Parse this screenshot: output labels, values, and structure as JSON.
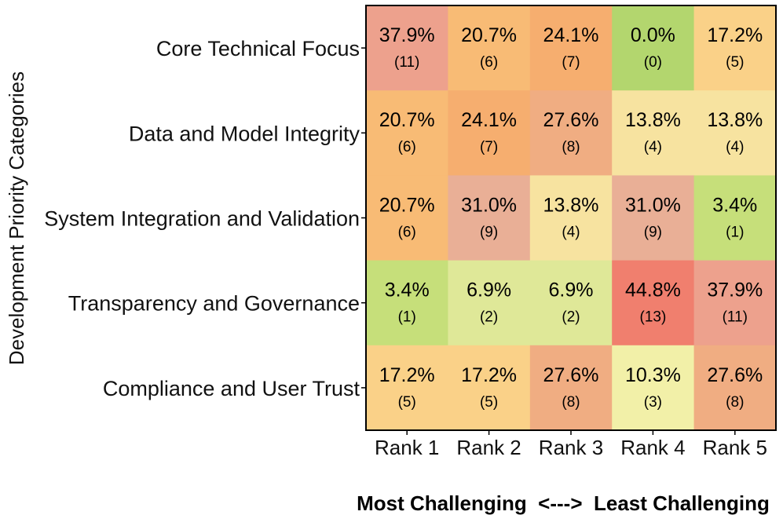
{
  "chart_data": {
    "type": "heatmap",
    "ylabel": "Development Priority Categories",
    "xlabel": "Most Challenging  <--->  Least Challenging",
    "rows": [
      "Core Technical Focus",
      "Data and Model Integrity",
      "System Integration and Validation",
      "Transparency and Governance",
      "Compliance and User Trust"
    ],
    "columns": [
      "Rank 1",
      "Rank 2",
      "Rank 3",
      "Rank 4",
      "Rank 5"
    ],
    "percent_labels": [
      [
        "37.9%",
        "20.7%",
        "24.1%",
        "0.0%",
        "17.2%"
      ],
      [
        "20.7%",
        "24.1%",
        "27.6%",
        "13.8%",
        "13.8%"
      ],
      [
        "20.7%",
        "31.0%",
        "13.8%",
        "31.0%",
        "3.4%"
      ],
      [
        "3.4%",
        "6.9%",
        "6.9%",
        "44.8%",
        "37.9%"
      ],
      [
        "17.2%",
        "17.2%",
        "27.6%",
        "10.3%",
        "27.6%"
      ]
    ],
    "count_labels": [
      [
        "(11)",
        "(6)",
        "(7)",
        "(0)",
        "(5)"
      ],
      [
        "(6)",
        "(7)",
        "(8)",
        "(4)",
        "(4)"
      ],
      [
        "(6)",
        "(9)",
        "(4)",
        "(9)",
        "(1)"
      ],
      [
        "(1)",
        "(2)",
        "(2)",
        "(13)",
        "(11)"
      ],
      [
        "(5)",
        "(5)",
        "(8)",
        "(3)",
        "(8)"
      ]
    ],
    "cell_colors": [
      [
        "#EDA18D",
        "#F8BB75",
        "#F6AE6F",
        "#B3D66E",
        "#FAD188"
      ],
      [
        "#F8BB75",
        "#F6AE6F",
        "#F0AD82",
        "#F7E3A0",
        "#F7E3A0"
      ],
      [
        "#F8BB75",
        "#E9AF96",
        "#F7E3A0",
        "#E9AF96",
        "#C6DF7A"
      ],
      [
        "#C6DF7A",
        "#DFE898",
        "#DFE898",
        "#F07F6E",
        "#EDA18D"
      ],
      [
        "#FAD188",
        "#FAD188",
        "#F0AD82",
        "#F2F0A8",
        "#F0AD82"
      ]
    ]
  }
}
